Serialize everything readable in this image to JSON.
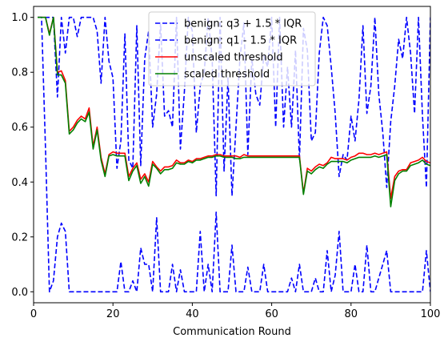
{
  "chart_data": {
    "type": "line",
    "title": "",
    "xlabel": "Communication Round",
    "ylabel": "",
    "xlim": [
      0,
      100
    ],
    "ylim": [
      -0.04,
      1.04
    ],
    "xticks": [
      0,
      20,
      40,
      60,
      80,
      100
    ],
    "yticks": [
      0.0,
      0.2,
      0.4,
      0.6,
      0.8,
      1.0
    ],
    "xtick_labels": [
      "0",
      "20",
      "40",
      "60",
      "80",
      "100"
    ],
    "ytick_labels": [
      "0.0",
      "0.2",
      "0.4",
      "0.6",
      "0.8",
      "1.0"
    ],
    "grid": false,
    "legend_position": "top-center",
    "x": [
      1,
      2,
      3,
      4,
      5,
      6,
      7,
      8,
      9,
      10,
      11,
      12,
      13,
      14,
      15,
      16,
      17,
      18,
      19,
      20,
      21,
      22,
      23,
      24,
      25,
      26,
      27,
      28,
      29,
      30,
      31,
      32,
      33,
      34,
      35,
      36,
      37,
      38,
      39,
      40,
      41,
      42,
      43,
      44,
      45,
      46,
      47,
      48,
      49,
      50,
      51,
      52,
      53,
      54,
      55,
      56,
      57,
      58,
      59,
      60,
      61,
      62,
      63,
      64,
      65,
      66,
      67,
      68,
      69,
      70,
      71,
      72,
      73,
      74,
      75,
      76,
      77,
      78,
      79,
      80,
      81,
      82,
      83,
      84,
      85,
      86,
      87,
      88,
      89,
      90,
      91,
      92,
      93,
      94,
      95,
      96,
      97,
      98,
      99,
      100
    ],
    "series": [
      {
        "name": "benign: q3 + 1.5 * IQR",
        "color": "#0000ff",
        "dash": "dashed",
        "values": [
          1.0,
          1.0,
          1.0,
          1.0,
          1.0,
          0.71,
          1.0,
          0.87,
          1.0,
          1.0,
          0.93,
          1.0,
          1.0,
          1.0,
          1.0,
          0.95,
          0.76,
          1.0,
          0.84,
          0.78,
          0.45,
          0.55,
          0.94,
          0.48,
          0.45,
          0.97,
          0.46,
          0.85,
          0.95,
          0.6,
          0.72,
          0.98,
          0.64,
          0.66,
          0.6,
          1.0,
          0.52,
          0.73,
          1.0,
          0.95,
          0.58,
          0.75,
          0.8,
          1.0,
          0.85,
          0.35,
          1.0,
          0.44,
          0.78,
          0.35,
          0.6,
          0.85,
          0.98,
          0.5,
          0.85,
          0.72,
          0.68,
          0.86,
          0.82,
          1.0,
          0.6,
          1.0,
          0.6,
          0.82,
          0.6,
          0.88,
          0.48,
          0.96,
          0.88,
          0.55,
          0.58,
          0.87,
          1.0,
          0.97,
          0.82,
          0.65,
          0.42,
          0.5,
          0.48,
          0.64,
          0.55,
          0.7,
          0.97,
          0.65,
          0.75,
          1.0,
          0.72,
          0.58,
          0.38,
          0.62,
          0.75,
          0.92,
          0.85,
          1.0,
          0.87,
          0.65,
          1.0,
          0.64,
          0.38,
          1.0
        ]
      },
      {
        "name": "benign: q1 - 1.5 * IQR",
        "color": "#0000ff",
        "dash": "dashed",
        "values": [
          1.0,
          1.0,
          0.52,
          0.0,
          0.04,
          0.2,
          0.25,
          0.22,
          0.0,
          0.0,
          0.0,
          0.0,
          0.0,
          0.0,
          0.0,
          0.0,
          0.0,
          0.0,
          0.0,
          0.0,
          0.0,
          0.11,
          0.0,
          0.0,
          0.04,
          0.0,
          0.16,
          0.1,
          0.1,
          0.0,
          0.27,
          0.0,
          0.0,
          0.0,
          0.1,
          0.0,
          0.08,
          0.0,
          0.0,
          0.0,
          0.0,
          0.22,
          0.0,
          0.1,
          0.0,
          0.29,
          0.0,
          0.0,
          0.0,
          0.17,
          0.0,
          0.0,
          0.0,
          0.09,
          0.0,
          0.0,
          0.0,
          0.1,
          0.0,
          0.0,
          0.0,
          0.0,
          0.0,
          0.0,
          0.05,
          0.0,
          0.1,
          0.0,
          0.0,
          0.0,
          0.05,
          0.0,
          0.0,
          0.15,
          0.0,
          0.06,
          0.22,
          0.0,
          0.0,
          0.0,
          0.1,
          0.0,
          0.0,
          0.17,
          0.0,
          0.0,
          0.05,
          0.1,
          0.15,
          0.0,
          0.0,
          0.0,
          0.0,
          0.0,
          0.0,
          0.0,
          0.0,
          0.0,
          0.15,
          0.0
        ]
      },
      {
        "name": "unscaled threshold",
        "color": "#ff0000",
        "dash": "solid",
        "values": [
          1.0,
          1.0,
          1.0,
          0.94,
          1.0,
          0.8,
          0.805,
          0.77,
          0.585,
          0.6,
          0.625,
          0.64,
          0.63,
          0.67,
          0.53,
          0.6,
          0.49,
          0.43,
          0.5,
          0.51,
          0.505,
          0.505,
          0.505,
          0.42,
          0.45,
          0.47,
          0.41,
          0.43,
          0.4,
          0.475,
          0.455,
          0.44,
          0.455,
          0.455,
          0.46,
          0.48,
          0.47,
          0.47,
          0.48,
          0.475,
          0.485,
          0.485,
          0.49,
          0.495,
          0.495,
          0.5,
          0.5,
          0.495,
          0.495,
          0.495,
          0.495,
          0.49,
          0.5,
          0.495,
          0.495,
          0.495,
          0.495,
          0.495,
          0.495,
          0.495,
          0.495,
          0.495,
          0.495,
          0.495,
          0.495,
          0.495,
          0.495,
          0.36,
          0.45,
          0.44,
          0.455,
          0.465,
          0.46,
          0.47,
          0.49,
          0.485,
          0.485,
          0.485,
          0.48,
          0.49,
          0.495,
          0.505,
          0.505,
          0.5,
          0.5,
          0.505,
          0.5,
          0.505,
          0.51,
          0.34,
          0.42,
          0.44,
          0.445,
          0.445,
          0.47,
          0.475,
          0.48,
          0.49,
          0.475,
          0.47
        ]
      },
      {
        "name": "scaled threshold",
        "color": "#008000",
        "dash": "solid",
        "values": [
          1.0,
          1.0,
          1.0,
          0.935,
          1.0,
          0.79,
          0.79,
          0.76,
          0.575,
          0.59,
          0.615,
          0.63,
          0.62,
          0.655,
          0.52,
          0.59,
          0.48,
          0.42,
          0.495,
          0.5,
          0.495,
          0.495,
          0.495,
          0.405,
          0.44,
          0.46,
          0.395,
          0.42,
          0.385,
          0.465,
          0.45,
          0.43,
          0.445,
          0.445,
          0.45,
          0.47,
          0.465,
          0.465,
          0.475,
          0.47,
          0.48,
          0.48,
          0.485,
          0.49,
          0.49,
          0.495,
          0.495,
          0.49,
          0.49,
          0.49,
          0.485,
          0.485,
          0.49,
          0.49,
          0.49,
          0.49,
          0.49,
          0.49,
          0.49,
          0.49,
          0.49,
          0.49,
          0.49,
          0.49,
          0.49,
          0.49,
          0.49,
          0.355,
          0.44,
          0.43,
          0.445,
          0.455,
          0.45,
          0.465,
          0.475,
          0.475,
          0.475,
          0.475,
          0.47,
          0.48,
          0.485,
          0.49,
          0.49,
          0.49,
          0.49,
          0.495,
          0.49,
          0.495,
          0.5,
          0.31,
          0.405,
          0.43,
          0.44,
          0.44,
          0.46,
          0.465,
          0.47,
          0.48,
          0.465,
          0.46
        ]
      }
    ]
  }
}
